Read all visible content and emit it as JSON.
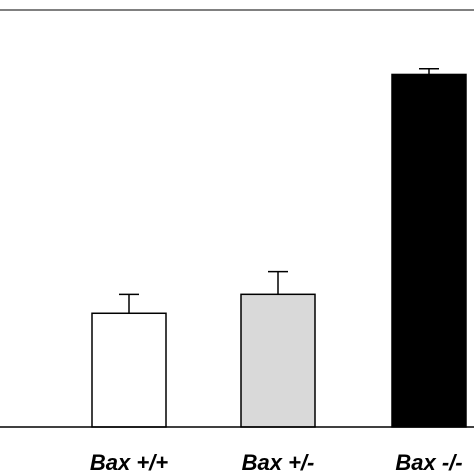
{
  "chart_data": {
    "type": "bar",
    "title": "",
    "xlabel": "",
    "ylabel": "",
    "categories": [
      "Bax +/+",
      "Bax +/-",
      "Bax -/-"
    ],
    "values": [
      30,
      35,
      93
    ],
    "errors": [
      5,
      6,
      1.5
    ],
    "ylim": [
      0,
      110
    ],
    "grid": false,
    "legend": "none",
    "bar_fills": [
      "#ffffff",
      "#d9d9d9",
      "#000000"
    ],
    "axis_color": "#000000"
  }
}
